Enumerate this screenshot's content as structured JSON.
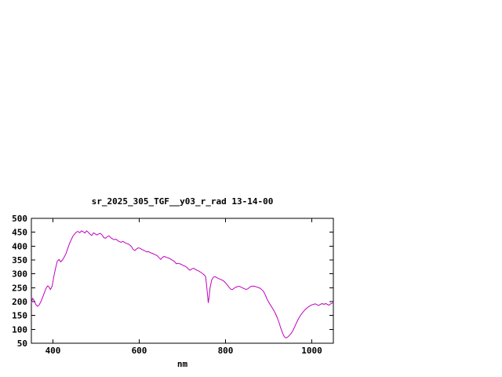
{
  "chart_data": {
    "type": "line",
    "title": "sr_2025_305_TGF__y03_r_rad 13-14-00",
    "xlabel": "nm",
    "ylabel": "",
    "xlim": [
      350,
      1050
    ],
    "ylim": [
      50,
      500
    ],
    "xticks": [
      400,
      600,
      800,
      1000
    ],
    "yticks": [
      50,
      100,
      150,
      200,
      250,
      300,
      350,
      400,
      450,
      500
    ],
    "grid": false,
    "legend": "none",
    "line_color": "#C000C0",
    "background_color": "#FFFFFF",
    "axis_color": "#000000",
    "series": [
      {
        "name": "sr_2025_305_TGF__y03_r_rad",
        "x": [
          350,
          353,
          356,
          360,
          364,
          368,
          372,
          376,
          380,
          384,
          388,
          392,
          394,
          398,
          402,
          406,
          410,
          414,
          418,
          422,
          426,
          430,
          434,
          438,
          442,
          446,
          450,
          454,
          458,
          462,
          466,
          470,
          474,
          478,
          482,
          486,
          490,
          494,
          498,
          502,
          506,
          510,
          514,
          518,
          522,
          526,
          530,
          534,
          538,
          542,
          546,
          550,
          554,
          558,
          562,
          566,
          570,
          574,
          578,
          582,
          586,
          590,
          594,
          598,
          602,
          606,
          610,
          614,
          618,
          622,
          626,
          630,
          634,
          638,
          642,
          646,
          650,
          654,
          658,
          662,
          666,
          670,
          674,
          678,
          682,
          686,
          690,
          694,
          698,
          702,
          706,
          710,
          714,
          718,
          722,
          726,
          730,
          734,
          738,
          742,
          746,
          750,
          754,
          758,
          760,
          762,
          764,
          768,
          772,
          776,
          780,
          784,
          788,
          792,
          796,
          800,
          804,
          808,
          812,
          816,
          820,
          824,
          828,
          832,
          836,
          840,
          844,
          848,
          852,
          856,
          860,
          864,
          868,
          872,
          876,
          880,
          884,
          888,
          892,
          896,
          900,
          904,
          908,
          912,
          916,
          920,
          924,
          928,
          932,
          936,
          940,
          944,
          948,
          952,
          956,
          960,
          964,
          968,
          972,
          976,
          980,
          984,
          988,
          992,
          996,
          1000,
          1004,
          1008,
          1012,
          1016,
          1020,
          1024,
          1028,
          1032,
          1036,
          1040,
          1044,
          1048,
          1050
        ],
        "y": [
          197,
          212,
          205,
          190,
          183,
          188,
          200,
          215,
          232,
          248,
          257,
          250,
          243,
          255,
          290,
          320,
          345,
          352,
          343,
          350,
          360,
          372,
          390,
          408,
          422,
          435,
          443,
          450,
          453,
          448,
          455,
          452,
          447,
          455,
          450,
          443,
          438,
          448,
          444,
          440,
          444,
          446,
          440,
          430,
          428,
          434,
          437,
          430,
          426,
          423,
          425,
          420,
          416,
          414,
          417,
          413,
          410,
          408,
          404,
          398,
          388,
          384,
          390,
          394,
          392,
          388,
          385,
          382,
          379,
          380,
          376,
          374,
          371,
          368,
          365,
          358,
          352,
          360,
          363,
          360,
          358,
          356,
          352,
          348,
          344,
          336,
          338,
          336,
          334,
          330,
          328,
          324,
          317,
          313,
          318,
          320,
          316,
          313,
          310,
          306,
          302,
          297,
          290,
          230,
          196,
          215,
          248,
          278,
          288,
          290,
          286,
          283,
          280,
          278,
          274,
          268,
          260,
          252,
          245,
          243,
          248,
          252,
          254,
          255,
          252,
          249,
          246,
          244,
          246,
          252,
          255,
          256,
          255,
          253,
          251,
          248,
          243,
          237,
          225,
          210,
          198,
          188,
          178,
          168,
          156,
          142,
          125,
          105,
          88,
          74,
          69,
          72,
          78,
          85,
          95,
          108,
          122,
          135,
          146,
          155,
          163,
          170,
          176,
          181,
          185,
          188,
          190,
          192,
          189,
          186,
          190,
          193,
          190,
          193,
          190,
          187,
          192,
          195,
          196
        ]
      }
    ]
  }
}
